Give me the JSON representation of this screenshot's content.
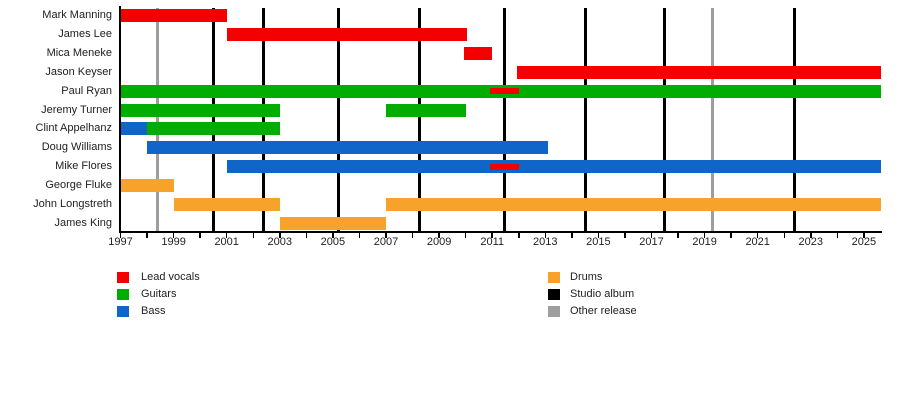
{
  "chart_data": {
    "type": "bar",
    "subtype": "band-membership-timeline-gantt",
    "title": "",
    "x_axis": {
      "min": 1997,
      "max": 2025.65,
      "tick_step": 1,
      "label_years": [
        1997,
        1999,
        2001,
        2003,
        2005,
        2007,
        2009,
        2011,
        2013,
        2015,
        2017,
        2019,
        2021,
        2023,
        2025
      ]
    },
    "members": [
      {
        "name": "Mark Manning",
        "segments": [
          {
            "role": "lead_vocals",
            "start": 1997,
            "end": 2001
          }
        ]
      },
      {
        "name": "James Lee",
        "segments": [
          {
            "role": "lead_vocals",
            "start": 2001,
            "end": 2010.05
          }
        ]
      },
      {
        "name": "Mica Meneke",
        "segments": [
          {
            "role": "lead_vocals",
            "start": 2009.95,
            "end": 2011
          }
        ]
      },
      {
        "name": "Jason Keyser",
        "segments": [
          {
            "role": "lead_vocals",
            "start": 2011.95,
            "end": 2025.65
          }
        ]
      },
      {
        "name": "Paul Ryan",
        "segments": [
          {
            "role": "guitars",
            "start": 1997,
            "end": 2025.65
          }
        ],
        "overlays": [
          {
            "role": "lead_vocals",
            "start": 2010.9,
            "end": 2012
          }
        ]
      },
      {
        "name": "Jeremy Turner",
        "segments": [
          {
            "role": "guitars",
            "start": 1997,
            "end": 2003
          },
          {
            "role": "guitars",
            "start": 2007,
            "end": 2010
          }
        ]
      },
      {
        "name": "Clint Appelhanz",
        "segments": [
          {
            "role": "bass",
            "start": 1997,
            "end": 1998
          },
          {
            "role": "guitars",
            "start": 1998,
            "end": 2003
          }
        ]
      },
      {
        "name": "Doug Williams",
        "segments": [
          {
            "role": "bass",
            "start": 1998,
            "end": 2013.1
          }
        ]
      },
      {
        "name": "Mike Flores",
        "segments": [
          {
            "role": "bass",
            "start": 2001,
            "end": 2025.65
          }
        ],
        "overlays": [
          {
            "role": "lead_vocals",
            "start": 2010.9,
            "end": 2012
          }
        ]
      },
      {
        "name": "George Fluke",
        "segments": [
          {
            "role": "drums",
            "start": 1997,
            "end": 1999
          }
        ]
      },
      {
        "name": "John Longstreth",
        "segments": [
          {
            "role": "drums",
            "start": 1999,
            "end": 2003
          },
          {
            "role": "drums",
            "start": 2007,
            "end": 2025.65
          }
        ]
      },
      {
        "name": "James King",
        "segments": [
          {
            "role": "drums",
            "start": 2003,
            "end": 2007
          }
        ]
      }
    ],
    "releases": {
      "studio_albums": [
        2000.5,
        2002.4,
        2005.2,
        2008.25,
        2011.45,
        2014.5,
        2017.5,
        2022.4
      ],
      "other_releases": [
        1998.4,
        2019.3
      ]
    },
    "colors": {
      "lead_vocals": "#F40000",
      "guitars": "#00AD00",
      "bass": "#1065C8",
      "drums": "#F7A22B",
      "studio_album": "#000000",
      "other_release": "#9E9E9E",
      "axis": "#000000",
      "text": "#202122"
    }
  },
  "legend": {
    "columns": [
      {
        "items": [
          {
            "key": "lead_vocals",
            "label": "Lead vocals"
          },
          {
            "key": "guitars",
            "label": "Guitars"
          },
          {
            "key": "bass",
            "label": "Bass"
          }
        ]
      },
      {
        "items": [
          {
            "key": "drums",
            "label": "Drums"
          },
          {
            "key": "studio_album",
            "label": "Studio album"
          },
          {
            "key": "other_release",
            "label": "Other release"
          }
        ]
      }
    ]
  }
}
